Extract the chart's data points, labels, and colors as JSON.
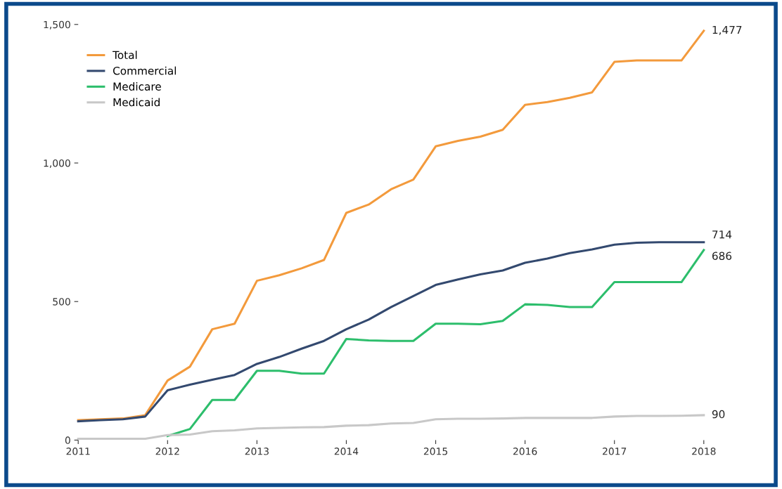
{
  "chart_data": {
    "type": "line",
    "x": [
      2011,
      2011.25,
      2011.5,
      2011.75,
      2012,
      2012.25,
      2012.5,
      2012.75,
      2013,
      2013.25,
      2013.5,
      2013.75,
      2014,
      2014.25,
      2014.5,
      2014.75,
      2015,
      2015.25,
      2015.5,
      2015.75,
      2016,
      2016.25,
      2016.5,
      2016.75,
      2017,
      2017.25,
      2017.5,
      2017.75,
      2018
    ],
    "series": [
      {
        "name": "Total",
        "color": "#f39a3c",
        "values": [
          72,
          75,
          78,
          90,
          215,
          265,
          400,
          420,
          575,
          595,
          620,
          650,
          820,
          850,
          905,
          940,
          1060,
          1080,
          1095,
          1120,
          1210,
          1220,
          1235,
          1255,
          1365,
          1370,
          1370,
          1370,
          1477
        ],
        "value_labels": [
          null,
          null,
          null,
          null,
          null,
          null,
          null,
          null,
          null,
          null,
          null,
          null,
          null,
          null,
          null,
          null,
          null,
          null,
          null,
          null,
          null,
          null,
          null,
          null,
          null,
          null,
          null,
          null,
          "1,477"
        ]
      },
      {
        "name": "Commercial",
        "color": "#33496f",
        "values": [
          68,
          72,
          75,
          85,
          180,
          200,
          218,
          235,
          275,
          300,
          330,
          358,
          400,
          435,
          480,
          520,
          560,
          580,
          598,
          612,
          640,
          655,
          675,
          688,
          705,
          712,
          714,
          714,
          714
        ],
        "value_labels": [
          null,
          null,
          null,
          null,
          null,
          null,
          null,
          null,
          null,
          null,
          null,
          null,
          null,
          null,
          null,
          null,
          null,
          null,
          null,
          null,
          null,
          null,
          null,
          null,
          null,
          null,
          null,
          null,
          "714"
        ]
      },
      {
        "name": "Medicare",
        "color": "#2dbe6c",
        "values": [
          null,
          null,
          null,
          null,
          15,
          40,
          145,
          145,
          250,
          250,
          240,
          240,
          365,
          360,
          358,
          358,
          420,
          420,
          418,
          430,
          490,
          488,
          480,
          480,
          570,
          570,
          570,
          570,
          686
        ],
        "value_labels": [
          null,
          null,
          null,
          null,
          null,
          null,
          null,
          null,
          null,
          null,
          null,
          null,
          null,
          null,
          null,
          null,
          null,
          null,
          null,
          null,
          null,
          null,
          null,
          null,
          null,
          null,
          null,
          null,
          "686"
        ]
      },
      {
        "name": "Medicaid",
        "color": "#c8c8c8",
        "values": [
          5,
          5,
          5,
          5,
          18,
          20,
          32,
          35,
          42,
          44,
          46,
          47,
          52,
          54,
          60,
          62,
          75,
          77,
          77,
          78,
          80,
          80,
          80,
          80,
          85,
          87,
          87,
          88,
          90
        ],
        "value_labels": [
          null,
          null,
          null,
          null,
          null,
          null,
          null,
          null,
          null,
          null,
          null,
          null,
          null,
          null,
          null,
          null,
          null,
          null,
          null,
          null,
          null,
          null,
          null,
          null,
          null,
          null,
          null,
          null,
          "90"
        ]
      }
    ],
    "xlim": [
      2011,
      2018
    ],
    "xticks": [
      2011,
      2012,
      2013,
      2014,
      2015,
      2016,
      2017,
      2018
    ],
    "ylim": [
      0,
      1500
    ],
    "yticks": [
      0,
      500,
      {
        "value": 1000,
        "label": "1,000"
      },
      {
        "value": 1500,
        "label": "1,500"
      }
    ],
    "legend": "top left",
    "grid": false,
    "line_style": "solid",
    "marker": "none"
  }
}
